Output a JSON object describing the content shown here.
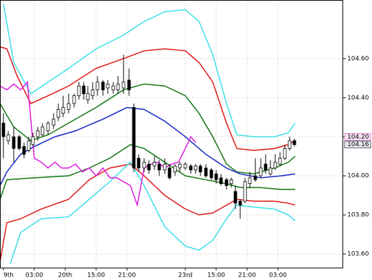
{
  "chart_data": {
    "type": "candlestick",
    "xlim": [
      0,
      100
    ],
    "ylim": [
      103.53,
      104.9
    ],
    "grid": true,
    "xticks": [
      {
        "value": 1,
        "label": "9th"
      },
      {
        "value": 10,
        "label": "03:00"
      },
      {
        "value": 19,
        "label": "20th"
      },
      {
        "value": 28,
        "label": "15:00"
      },
      {
        "value": 37,
        "label": "21:00"
      },
      {
        "value": 54,
        "label": "23rd"
      },
      {
        "value": 63,
        "label": "15:00"
      },
      {
        "value": 72,
        "label": "21:00"
      },
      {
        "value": 81,
        "label": "03:00"
      }
    ],
    "yticks": [
      {
        "value": 103.6,
        "label": "103.60"
      },
      {
        "value": 103.8,
        "label": "103.80"
      },
      {
        "value": 104,
        "label": "104.00"
      },
      {
        "value": 104.2,
        "label": "104.20"
      },
      {
        "value": 104.4,
        "label": "104.40"
      },
      {
        "value": 104.6,
        "label": "104.60"
      }
    ],
    "candles": {
      "up_color": "#ffffff",
      "down_color": "#000000",
      "x": [
        1,
        2.4,
        4,
        5.6,
        7,
        8.4,
        9.6,
        11,
        12.4,
        14,
        15.6,
        17,
        18.4,
        20,
        21.6,
        23,
        24.4,
        25.6,
        27,
        28.4,
        30,
        31.4,
        33,
        34.4,
        36,
        37.6,
        39,
        40.4,
        42,
        43.4,
        45,
        46.4,
        48,
        49.4,
        51,
        52.4,
        54,
        55.6,
        57,
        58.4,
        60,
        61.6,
        63,
        64.4,
        66,
        67.4,
        68.6,
        70,
        71.4,
        72.8,
        74.4,
        76,
        77.4,
        78.8,
        80.2,
        81.6,
        83,
        84.4,
        85.8
      ],
      "open": [
        104.27,
        104.18,
        104.2,
        104.2,
        104.15,
        104.13,
        104.16,
        104.2,
        104.21,
        104.23,
        104.26,
        104.3,
        104.32,
        104.34,
        104.37,
        104.41,
        104.46,
        104.39,
        104.41,
        104.44,
        104.48,
        104.45,
        104.44,
        104.44,
        104.45,
        104.49,
        104.35,
        104.09,
        104.04,
        104.06,
        104.05,
        104.06,
        104.03,
        104.04,
        104.02,
        104.04,
        104.04,
        104.05,
        104.03,
        104.05,
        104.04,
        104.03,
        104.01,
        103.99,
        103.98,
        103.96,
        103.92,
        103.87,
        103.87,
        103.96,
        104.0,
        104.0,
        104.06,
        104.01,
        104.04,
        104.06,
        104.09,
        104.14,
        104.18
      ],
      "high": [
        104.32,
        104.23,
        104.25,
        104.21,
        104.17,
        104.2,
        104.22,
        104.25,
        104.27,
        104.28,
        104.32,
        104.37,
        104.41,
        104.42,
        104.42,
        104.48,
        104.48,
        104.46,
        104.48,
        104.51,
        104.49,
        104.49,
        104.48,
        104.51,
        104.62,
        104.55,
        104.37,
        104.11,
        104.09,
        104.08,
        104.1,
        104.08,
        104.09,
        104.06,
        104.06,
        104.07,
        104.07,
        104.06,
        104.06,
        104.06,
        104.06,
        104.04,
        104.03,
        104.01,
        103.99,
        103.99,
        103.95,
        103.88,
        103.99,
        104.02,
        104.09,
        104.09,
        104.11,
        104.08,
        104.11,
        104.12,
        104.16,
        104.2,
        104.19
      ],
      "low": [
        104.09,
        104.16,
        104.07,
        104.13,
        104.09,
        104.12,
        104.15,
        104.18,
        104.2,
        104.21,
        104.24,
        104.28,
        104.3,
        104.32,
        104.35,
        104.39,
        104.39,
        104.37,
        104.39,
        104.41,
        104.41,
        104.42,
        104.42,
        104.42,
        104.42,
        104.41,
        104.02,
        104.02,
        104.02,
        104.01,
        104.03,
        104.0,
        104.01,
        103.98,
        104.0,
        104.02,
        104.03,
        104.01,
        104.01,
        104.0,
        103.99,
        103.98,
        103.96,
        103.95,
        103.93,
        103.94,
        103.83,
        103.78,
        103.86,
        103.94,
        103.97,
        103.99,
        104.01,
        104.0,
        104.03,
        104.05,
        104.08,
        104.13,
        104.15
      ],
      "close": [
        104.2,
        104.21,
        104.14,
        104.14,
        104.11,
        104.18,
        104.2,
        104.23,
        104.25,
        104.27,
        104.29,
        104.34,
        104.35,
        104.37,
        104.41,
        104.46,
        104.42,
        104.42,
        104.44,
        104.48,
        104.44,
        104.47,
        104.46,
        104.47,
        104.48,
        104.44,
        104.04,
        104.04,
        104.07,
        104.03,
        104.07,
        104.03,
        104.06,
        103.99,
        104.05,
        104.06,
        104.06,
        104.03,
        104.05,
        104.02,
        104.0,
        103.99,
        103.98,
        103.96,
        103.95,
        103.98,
        103.86,
        103.85,
        103.97,
        103.99,
        103.98,
        104.04,
        104.03,
        104.04,
        104.07,
        104.09,
        104.14,
        104.18,
        104.16
      ]
    },
    "series": [
      {
        "color": "#40e0e8",
        "x": [
          1,
          4,
          9,
          14,
          20,
          28,
          36,
          42,
          48,
          54,
          58,
          62,
          66,
          69,
          74,
          80,
          84,
          86
        ],
        "values": [
          104.88,
          104.58,
          104.42,
          104.48,
          104.55,
          104.65,
          104.72,
          104.79,
          104.84,
          104.85,
          104.79,
          104.62,
          104.37,
          104.21,
          104.2,
          104.2,
          104.22,
          104.27
        ]
      },
      {
        "color": "#e02020",
        "x": [
          0,
          2,
          5,
          9,
          14,
          20,
          28,
          36,
          42,
          48,
          54,
          58,
          62,
          66,
          69,
          74,
          80,
          84,
          86
        ],
        "values": [
          104.66,
          104.65,
          104.51,
          104.37,
          104.41,
          104.46,
          104.55,
          104.6,
          104.64,
          104.65,
          104.64,
          104.58,
          104.48,
          104.27,
          104.14,
          104.13,
          104.14,
          104.16,
          104.18
        ]
      },
      {
        "color": "#1a7a1a",
        "x": [
          0,
          4,
          9,
          14,
          20,
          28,
          36,
          42,
          48,
          54,
          58,
          62,
          66,
          69,
          74,
          80,
          84,
          86
        ],
        "values": [
          104.37,
          104.25,
          104.18,
          104.21,
          104.27,
          104.35,
          104.44,
          104.47,
          104.46,
          104.41,
          104.32,
          104.2,
          104.06,
          104.02,
          104.01,
          104.04,
          104.07,
          104.1
        ]
      },
      {
        "color": "#1c2fc8",
        "x": [
          0,
          2,
          6,
          10,
          16,
          22,
          30,
          37,
          42,
          48,
          54,
          60,
          66,
          70,
          76,
          82,
          86
        ],
        "values": [
          103.95,
          104.02,
          104.11,
          104.15,
          104.2,
          104.23,
          104.29,
          104.35,
          104.34,
          104.28,
          104.2,
          104.11,
          104.04,
          104.01,
          103.99,
          104.0,
          104.01
        ]
      },
      {
        "color": "#1a7a1a",
        "x": [
          0,
          2,
          10,
          20,
          26,
          32,
          38,
          42,
          48,
          54,
          60,
          66,
          70,
          76,
          82,
          86
        ],
        "values": [
          103.88,
          103.98,
          103.99,
          104.0,
          104.04,
          104.09,
          104.16,
          104.14,
          104.07,
          104.0,
          103.98,
          103.96,
          103.94,
          103.94,
          103.93,
          103.93
        ]
      },
      {
        "color": "#e02020",
        "x": [
          0,
          2,
          6,
          12,
          20,
          26,
          32,
          38,
          42,
          48,
          54,
          58,
          62,
          66,
          69,
          74,
          80,
          84,
          86
        ],
        "values": [
          103.56,
          103.76,
          103.78,
          103.83,
          103.88,
          103.98,
          104.04,
          104.06,
          104.0,
          103.9,
          103.83,
          103.8,
          103.81,
          103.85,
          103.88,
          103.87,
          103.87,
          103.86,
          103.85
        ]
      },
      {
        "color": "#40e0e8",
        "x": [
          3,
          6,
          12,
          20,
          26,
          32,
          38,
          42,
          48,
          54,
          58,
          62,
          66,
          69,
          74,
          80,
          84,
          86
        ],
        "values": [
          103.55,
          103.71,
          103.78,
          103.79,
          103.88,
          103.97,
          104.07,
          103.95,
          103.74,
          103.64,
          103.62,
          103.67,
          103.78,
          103.85,
          103.84,
          103.83,
          103.8,
          103.77
        ]
      },
      {
        "color": "#e020e0",
        "x": [
          0,
          2,
          4,
          6,
          8,
          10,
          12,
          14,
          16,
          18,
          20,
          22,
          24,
          26,
          28,
          30,
          32,
          34,
          36,
          38,
          40,
          42,
          44,
          46,
          48,
          50,
          52,
          54,
          55.6,
          57
        ],
        "values": [
          104.46,
          104.44,
          104.47,
          104.44,
          104.48,
          104.09,
          104.07,
          104.04,
          104.07,
          104.04,
          104.04,
          104.06,
          104.02,
          104.04,
          104.0,
          104.04,
          103.99,
          103.99,
          103.97,
          103.95,
          103.85,
          104.04,
          104.06,
          104.07,
          104.04,
          104.06,
          104.07,
          104.14,
          104.2,
          104.17
        ]
      }
    ],
    "price_tags": {
      "values": [
        104.2,
        104.16
      ],
      "value_labels": [
        "104.20",
        "104.16"
      ],
      "colors": [
        "#e040c0",
        "#000000"
      ]
    }
  }
}
